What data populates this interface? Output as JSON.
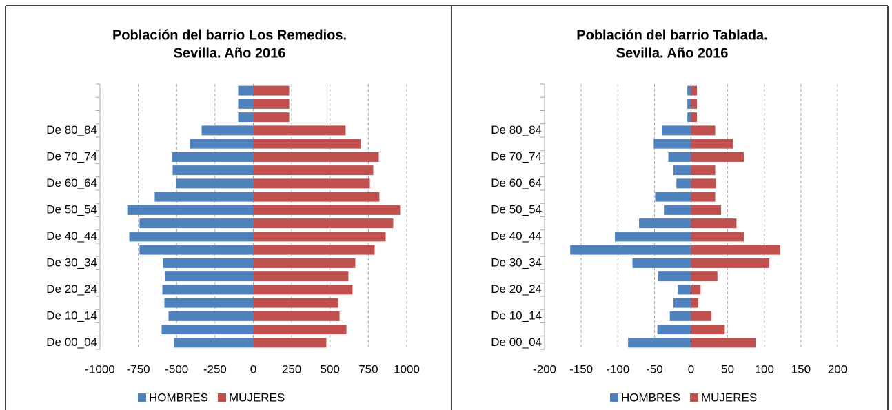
{
  "chart_data": [
    {
      "type": "bar",
      "orientation": "horizontal",
      "title": [
        "Población del barrio Los Remedios.",
        "Sevilla. Año 2016"
      ],
      "categories": [
        "De 00_04",
        null,
        "De 10_14",
        null,
        "De 20_24",
        null,
        "De 30_34",
        null,
        "De 40_44",
        null,
        "De 50_54",
        null,
        "De 60_64",
        null,
        "De 70_74",
        null,
        "De 80_84",
        null,
        null,
        null
      ],
      "series": [
        {
          "name": "HOMBRES",
          "color": "#4f81bd",
          "values": [
            -517,
            -598,
            -553,
            -580,
            -593,
            -575,
            -589,
            -742,
            -809,
            -742,
            -822,
            -643,
            -503,
            -526,
            -530,
            -413,
            -337,
            -99,
            -99,
            -99
          ]
        },
        {
          "name": "MUJERES",
          "color": "#c0504d",
          "values": [
            476,
            607,
            562,
            553,
            647,
            620,
            665,
            791,
            863,
            912,
            957,
            822,
            760,
            782,
            818,
            701,
            602,
            234,
            234,
            234
          ]
        }
      ],
      "xlim": [
        -1000,
        1000
      ],
      "xticks": [
        -1000,
        -750,
        -500,
        -250,
        0,
        250,
        500,
        750,
        1000
      ],
      "grid": true,
      "legend": "bottom"
    },
    {
      "type": "bar",
      "orientation": "horizontal",
      "title": [
        "Población del barrio Tablada.",
        "Sevilla. Año 2016"
      ],
      "categories": [
        "De 00_04",
        null,
        "De 10_14",
        null,
        "De 20_24",
        null,
        "De 30_34",
        null,
        "De 40_44",
        null,
        "De 50_54",
        null,
        "De 60_64",
        null,
        "De 70_74",
        null,
        "De 80_84",
        null,
        null,
        null
      ],
      "series": [
        {
          "name": "HOMBRES",
          "color": "#4f81bd",
          "values": [
            -86,
            -46,
            -29,
            -24,
            -18,
            -45,
            -80,
            -165,
            -104,
            -71,
            -37,
            -49,
            -20,
            -24,
            -31,
            -51,
            -40,
            -5,
            -5,
            -5
          ]
        },
        {
          "name": "MUJERES",
          "color": "#c0504d",
          "values": [
            88,
            46,
            28,
            10,
            13,
            36,
            107,
            122,
            72,
            62,
            41,
            33,
            34,
            33,
            72,
            57,
            33,
            8,
            8,
            8
          ]
        }
      ],
      "xlim": [
        -200,
        200
      ],
      "xticks": [
        -200,
        -150,
        -100,
        -50,
        0,
        50,
        100,
        150,
        200
      ],
      "grid": true,
      "legend": "bottom"
    }
  ]
}
